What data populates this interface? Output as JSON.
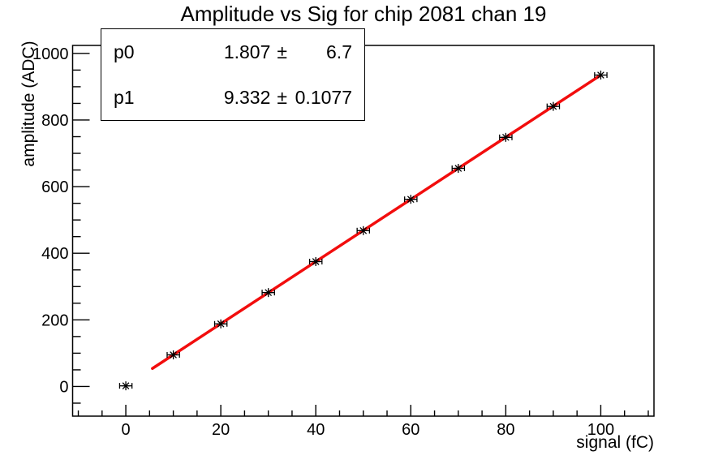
{
  "stats_box": {
    "rows": [
      {
        "param": "p0",
        "value": "1.807",
        "pm": "±",
        "error": "6.7"
      },
      {
        "param": "p1",
        "value": "9.332",
        "pm": "±",
        "error": "0.1077"
      }
    ]
  },
  "chart_data": {
    "type": "scatter",
    "title": "Amplitude vs Sig for chip 2081 chan 19",
    "xlabel": "signal (fC)",
    "ylabel": "amplitude (ADC)",
    "x": [
      0,
      10,
      20,
      30,
      40,
      50,
      60,
      70,
      80,
      90,
      100
    ],
    "y": [
      2,
      95,
      188,
      282,
      375,
      468,
      562,
      655,
      748,
      841,
      935
    ],
    "x_error": 1.3,
    "marker": "asterisk",
    "marker_color": "#000000",
    "marker_size": 5.5,
    "fit": {
      "type": "linear",
      "p0": 1.807,
      "p1": 9.332,
      "p0_error": 6.7,
      "p1_error": 0.1077,
      "range": [
        5.6,
        100
      ],
      "color": "#f20d0d",
      "line_width": 3.5
    },
    "x_ticks": [
      0,
      20,
      40,
      60,
      80,
      100
    ],
    "y_ticks": [
      0,
      200,
      400,
      600,
      800,
      1000
    ],
    "x_minor_step": 5,
    "y_minor_step": 50,
    "xlim": [
      -11.2,
      111.2
    ],
    "ylim": [
      -89,
      1024
    ],
    "grid": false,
    "legend": "none",
    "axis_color": "#000000",
    "background": "#ffffff"
  }
}
